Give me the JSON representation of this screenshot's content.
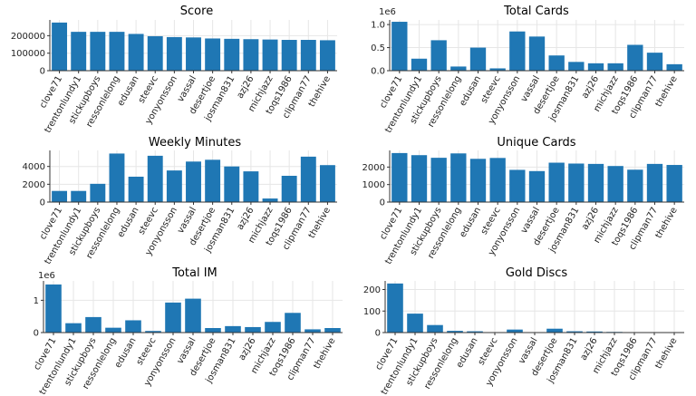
{
  "colors": {
    "bar": "#1f77b4",
    "grid": "#e6e6e6",
    "axis": "#333333"
  },
  "players": [
    "clove71",
    "trentonlundy1",
    "stickupboys",
    "ressonlelong",
    "edusan",
    "steevc",
    "yonyonsson",
    "vassal",
    "desertjoe",
    "josman831",
    "azj26",
    "michjazz",
    "toqs1986",
    "clipman77",
    "thehive"
  ],
  "chart_data": [
    {
      "type": "bar",
      "title": "Score",
      "offset_label": "",
      "xlabel": "",
      "ylabel": "",
      "ylim": [
        0,
        290000
      ],
      "yticks": [
        0,
        100000,
        200000
      ],
      "ytick_labels": [
        "0",
        "100000",
        "200000"
      ],
      "grid": true,
      "values": [
        275000,
        222000,
        222000,
        222000,
        210000,
        197000,
        192000,
        190000,
        184000,
        182000,
        180000,
        178000,
        176000,
        176000,
        174000
      ]
    },
    {
      "type": "bar",
      "title": "Total Cards",
      "offset_label": "1e6",
      "xlabel": "",
      "ylabel": "",
      "ylim": [
        0,
        1.1
      ],
      "yticks": [
        0,
        0.5,
        1.0
      ],
      "ytick_labels": [
        "0.0",
        "0.5",
        "1.0"
      ],
      "grid": true,
      "values": [
        1.06,
        0.26,
        0.66,
        0.09,
        0.5,
        0.05,
        0.85,
        0.74,
        0.33,
        0.19,
        0.16,
        0.16,
        0.56,
        0.39,
        0.14
      ]
    },
    {
      "type": "bar",
      "title": "Weekly Minutes",
      "offset_label": "",
      "xlabel": "",
      "ylabel": "",
      "ylim": [
        0,
        5800
      ],
      "yticks": [
        0,
        2000,
        4000
      ],
      "ytick_labels": [
        "0",
        "2000",
        "4000"
      ],
      "grid": true,
      "values": [
        1250,
        1250,
        2050,
        5450,
        2850,
        5200,
        3550,
        4550,
        4750,
        4000,
        3450,
        400,
        2950,
        5100,
        4150
      ]
    },
    {
      "type": "bar",
      "title": "Unique Cards",
      "offset_label": "",
      "xlabel": "",
      "ylabel": "",
      "ylim": [
        0,
        2950
      ],
      "yticks": [
        0,
        1000,
        2000
      ],
      "ytick_labels": [
        "0",
        "1000",
        "2000"
      ],
      "grid": true,
      "values": [
        2800,
        2680,
        2530,
        2780,
        2470,
        2520,
        1840,
        1770,
        2250,
        2200,
        2180,
        2060,
        1850,
        2180,
        2120
      ]
    },
    {
      "type": "bar",
      "title": "Total IM",
      "offset_label": "1e6",
      "xlabel": "",
      "ylabel": "",
      "ylim": [
        0,
        1.6
      ],
      "yticks": [
        0,
        1
      ],
      "ytick_labels": [
        "0",
        "1"
      ],
      "grid": true,
      "values": [
        1.49,
        0.29,
        0.48,
        0.15,
        0.38,
        0.05,
        0.93,
        1.05,
        0.14,
        0.2,
        0.17,
        0.33,
        0.61,
        0.1,
        0.14
      ]
    },
    {
      "type": "bar",
      "title": "Gold Discs",
      "offset_label": "",
      "xlabel": "",
      "ylabel": "",
      "ylim": [
        0,
        240
      ],
      "yticks": [
        0,
        100,
        200
      ],
      "ytick_labels": [
        "0",
        "100",
        "200"
      ],
      "grid": true,
      "values": [
        228,
        88,
        35,
        8,
        6,
        0,
        14,
        0,
        18,
        6,
        5,
        3,
        0,
        0,
        0
      ]
    }
  ]
}
